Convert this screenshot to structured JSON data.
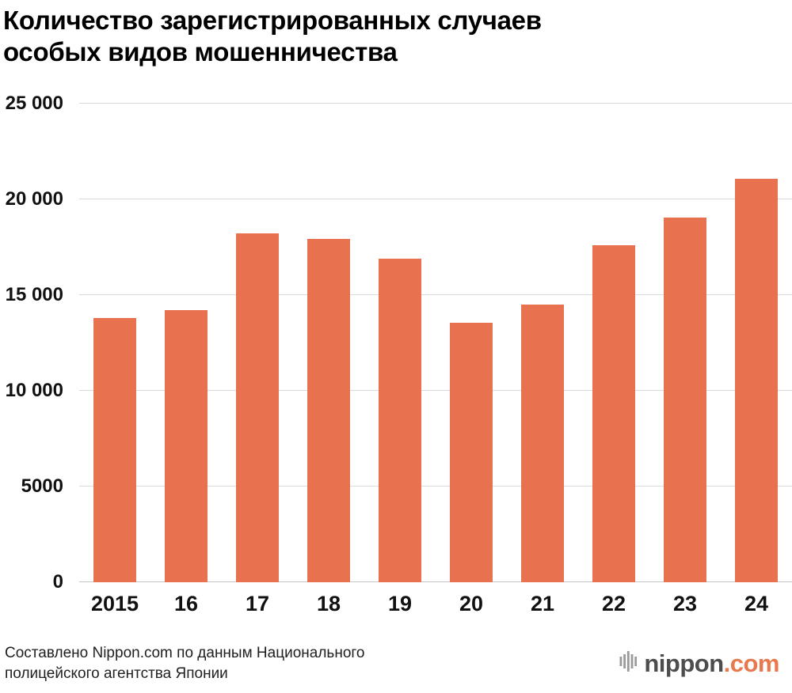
{
  "header": {
    "title": "Количество зарегистрированных случаев\nособых видов мошенничества"
  },
  "chart_data": {
    "type": "bar",
    "title": "Количество зарегистрированных случаев особых видов мошенничества",
    "categories": [
      "2015",
      "16",
      "17",
      "18",
      "19",
      "20",
      "21",
      "22",
      "23",
      "24"
    ],
    "values": [
      13800,
      14200,
      18200,
      17900,
      16900,
      13550,
      14500,
      17600,
      19050,
      21050
    ],
    "xlabel": "",
    "ylabel": "",
    "ylim": [
      0,
      25000
    ],
    "ytick_values": [
      0,
      5000,
      10000,
      15000,
      20000,
      25000
    ],
    "ytick_labels": [
      "0",
      "5000",
      "10 000",
      "15 000",
      "20 000",
      "25 000"
    ],
    "grid": true,
    "legend": false,
    "bar_color": "#e8724f"
  },
  "footer": {
    "source": "Составлено Nippon.com по данным Национального\nполицейского агентства Японии",
    "logo": {
      "name": "nippon",
      "suffix": ".com"
    }
  },
  "colors": {
    "accent": "#e8724f",
    "grid": "#d9d9d9",
    "text": "#111111",
    "logo_gray": "#4d4d4d",
    "logo_orange": "#e8794e"
  }
}
